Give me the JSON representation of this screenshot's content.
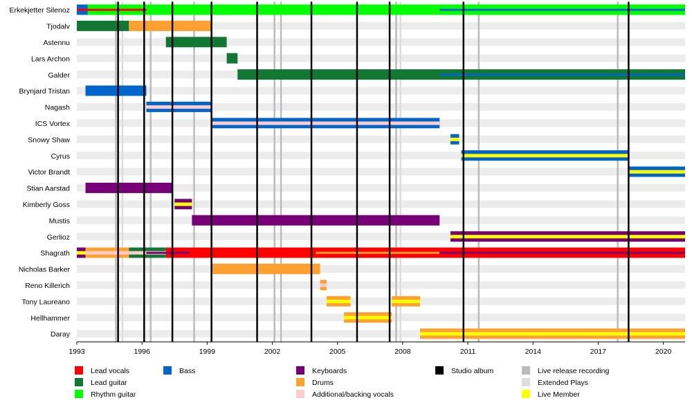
{
  "chart_data": {
    "type": "timeline",
    "x_range": [
      1993,
      2021
    ],
    "x_ticks": [
      "1993",
      "1996",
      "1999",
      "2002",
      "2005",
      "2008",
      "2011",
      "2014",
      "2017",
      "2020"
    ],
    "x_tick_values": [
      1993,
      1996,
      1999,
      2002,
      2005,
      2008,
      2011,
      2014,
      2017,
      2020
    ],
    "members": [
      "Erkekjetter Silenoz",
      "Tjodalv",
      "Astennu",
      "Lars Archon",
      "Galder",
      "Brynjard Tristan",
      "Nagash",
      "ICS Vortex",
      "Snowy Shaw",
      "Cyrus",
      "Victor Brandt",
      "Stian Aarstad",
      "Kimberly Goss",
      "Mustis",
      "Gerlioz",
      "Shagrath",
      "Nicholas Barker",
      "Reno Killerich",
      "Tony Laureano",
      "Hellhammer",
      "Daray"
    ],
    "roles": {
      "lead_vocals": {
        "label": "Lead vocals",
        "color": "#ff0000"
      },
      "lead_guitar": {
        "label": "Lead guitar",
        "color": "#117733"
      },
      "rhythm_guitar": {
        "label": "Rhythm guitar",
        "color": "#00ff00"
      },
      "bass": {
        "label": "Bass",
        "color": "#0066cc"
      },
      "keyboards": {
        "label": "Keyboards",
        "color": "#770077"
      },
      "drums": {
        "label": "Drums",
        "color": "#ffa030"
      },
      "backing_vocals": {
        "label": "Additional/backing vocals",
        "color": "#ffcccc"
      },
      "live_member": {
        "label": "Live Member",
        "color": "#ffff00"
      }
    },
    "bars": [
      {
        "member": "Erkekjetter Silenoz",
        "from": 1993.0,
        "to": 2021.0,
        "role": "rhythm_guitar"
      },
      {
        "member": "Erkekjetter Silenoz",
        "from": 1993.0,
        "to": 1993.5,
        "role": "bass"
      },
      {
        "member": "Erkekjetter Silenoz",
        "from": 1993.0,
        "to": 1996.2,
        "role": "lead_vocals",
        "stripe": true
      },
      {
        "member": "Erkekjetter Silenoz",
        "from": 2009.7,
        "to": 2021.0,
        "role": "bass",
        "stripe": true
      },
      {
        "member": "Tjodalv",
        "from": 1993.0,
        "to": 1995.4,
        "role": "lead_guitar"
      },
      {
        "member": "Tjodalv",
        "from": 1995.4,
        "to": 1999.2,
        "role": "drums"
      },
      {
        "member": "Astennu",
        "from": 1997.1,
        "to": 1999.9,
        "role": "lead_guitar"
      },
      {
        "member": "Lars Archon",
        "from": 1999.9,
        "to": 2000.4,
        "role": "lead_guitar"
      },
      {
        "member": "Galder",
        "from": 2000.4,
        "to": 2021.0,
        "role": "lead_guitar"
      },
      {
        "member": "Galder",
        "from": 2009.7,
        "to": 2021.0,
        "role": "bass",
        "stripe": true
      },
      {
        "member": "Brynjard Tristan",
        "from": 1993.4,
        "to": 1996.2,
        "role": "bass"
      },
      {
        "member": "Nagash",
        "from": 1996.2,
        "to": 1999.2,
        "role": "bass",
        "inner": "backing_vocals"
      },
      {
        "member": "ICS Vortex",
        "from": 1999.2,
        "to": 2009.7,
        "role": "bass",
        "inner": "backing_vocals"
      },
      {
        "member": "Snowy Shaw",
        "from": 2010.2,
        "to": 2010.6,
        "role": "bass",
        "inner": "live_member"
      },
      {
        "member": "Cyrus",
        "from": 2010.7,
        "to": 2018.4,
        "role": "bass",
        "inner": "live_member"
      },
      {
        "member": "Victor Brandt",
        "from": 2018.4,
        "to": 2021.0,
        "role": "bass",
        "inner": "live_member"
      },
      {
        "member": "Stian Aarstad",
        "from": 1993.4,
        "to": 1997.4,
        "role": "keyboards"
      },
      {
        "member": "Kimberly Goss",
        "from": 1997.5,
        "to": 1998.3,
        "role": "keyboards",
        "inner": "live_member"
      },
      {
        "member": "Mustis",
        "from": 1998.3,
        "to": 2009.7,
        "role": "keyboards"
      },
      {
        "member": "Gerlioz",
        "from": 2010.2,
        "to": 2021.0,
        "role": "keyboards",
        "inner": "live_member"
      },
      {
        "member": "Shagrath",
        "from": 1993.0,
        "to": 1993.4,
        "role": "keyboards",
        "inner": "live_member"
      },
      {
        "member": "Shagrath",
        "from": 1993.4,
        "to": 1995.4,
        "role": "drums",
        "inner": "backing_vocals"
      },
      {
        "member": "Shagrath",
        "from": 1995.4,
        "to": 1997.1,
        "role": "lead_guitar",
        "inner": "backing_vocals"
      },
      {
        "member": "Shagrath",
        "from": 1997.1,
        "to": 2021.0,
        "role": "lead_vocals"
      },
      {
        "member": "Shagrath",
        "from": 1996.2,
        "to": 1998.2,
        "role": "keyboards",
        "stripe": true
      },
      {
        "member": "Shagrath",
        "from": 2004.0,
        "to": 2009.7,
        "role": "drums",
        "stripe": true
      },
      {
        "member": "Shagrath",
        "from": 2009.7,
        "to": 2021.0,
        "role": "keyboards",
        "stripe": true
      },
      {
        "member": "Nicholas Barker",
        "from": 1999.2,
        "to": 2004.2,
        "role": "drums"
      },
      {
        "member": "Reno Killerich",
        "from": 2004.2,
        "to": 2004.5,
        "role": "drums",
        "inner": "backing_vocals"
      },
      {
        "member": "Tony Laureano",
        "from": 2004.5,
        "to": 2005.6,
        "role": "drums",
        "inner": "live_member"
      },
      {
        "member": "Tony Laureano",
        "from": 2007.5,
        "to": 2008.8,
        "role": "drums",
        "inner": "live_member"
      },
      {
        "member": "Hellhammer",
        "from": 2005.3,
        "to": 2007.5,
        "role": "drums",
        "inner": "live_member"
      },
      {
        "member": "Daray",
        "from": 2008.8,
        "to": 2021.0,
        "role": "drums",
        "inner": "live_member"
      }
    ],
    "studio_albums": [
      1994.9,
      1996.1,
      1997.4,
      1999.2,
      2001.3,
      2003.8,
      2005.9,
      2007.4,
      2010.8,
      2018.4
    ],
    "live_recordings": [
      1994.8,
      1996.4,
      1998.4,
      2002.1,
      2002.4,
      2007.7,
      2011.5,
      2017.9
    ],
    "extended_plays": [
      1995.1,
      2007.9
    ],
    "legend": [
      {
        "label": "Lead vocals",
        "color": "#ff0000"
      },
      {
        "label": "Lead guitar",
        "color": "#117733"
      },
      {
        "label": "Rhythm guitar",
        "color": "#00ff00"
      },
      {
        "label": "Bass",
        "color": "#0066cc"
      },
      {
        "label": "Keyboards",
        "color": "#770077"
      },
      {
        "label": "Drums",
        "color": "#ffa030"
      },
      {
        "label": "Additional/backing vocals",
        "color": "#ffcccc"
      },
      {
        "label": "Studio album",
        "color": "#000000"
      },
      {
        "label": "Live release recording",
        "color": "#bbbbbb"
      },
      {
        "label": "Extended Plays",
        "color": "#dddddd"
      },
      {
        "label": "Live Member",
        "color": "#ffff00"
      }
    ]
  }
}
